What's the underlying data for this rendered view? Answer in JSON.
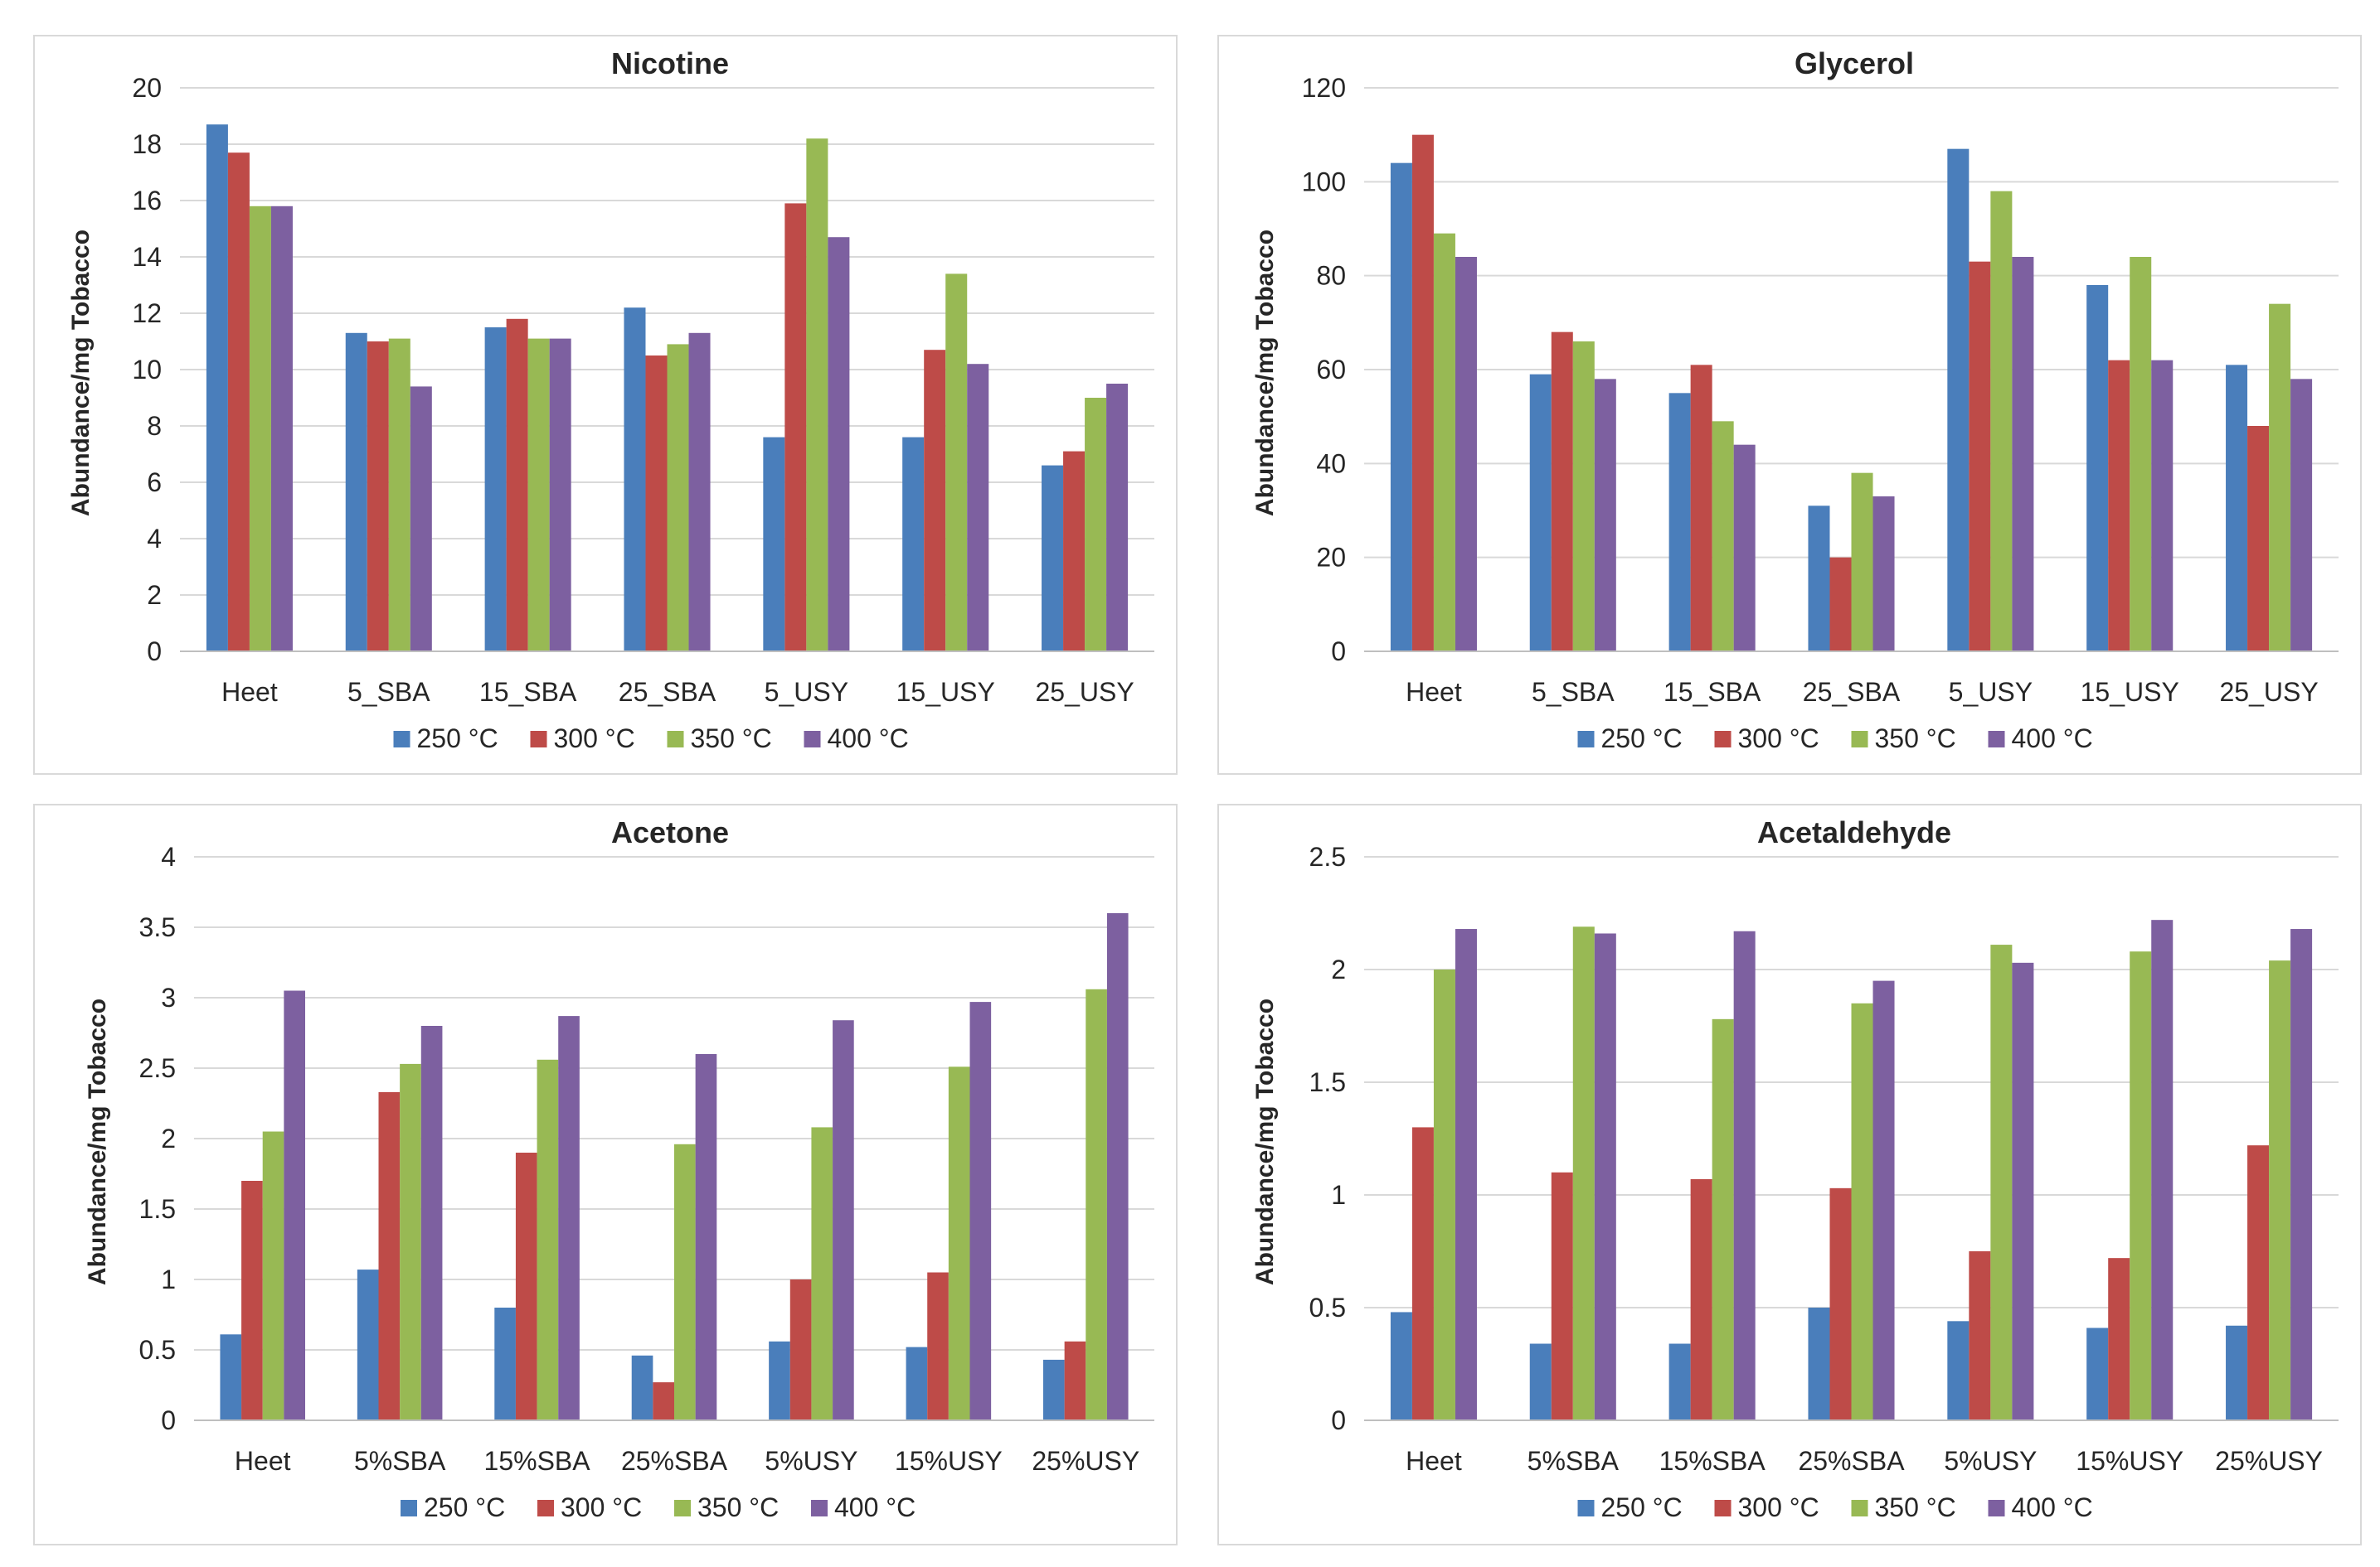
{
  "chart_data": [
    {
      "type": "bar",
      "title": "Nicotine",
      "xlabel": "",
      "ylabel": "Abundance/mg Tobacco",
      "ylim": [
        0,
        20
      ],
      "yticks": [
        0,
        2,
        4,
        6,
        8,
        10,
        12,
        14,
        16,
        18,
        20
      ],
      "grid": true,
      "legend": "bottom",
      "categories": [
        "Heet",
        "5_SBA",
        "15_SBA",
        "25_SBA",
        "5_USY",
        "15_USY",
        "25_USY"
      ],
      "series": [
        {
          "name": "250 °C",
          "color": "#4a7ebb",
          "values": [
            18.7,
            11.3,
            11.5,
            12.2,
            7.6,
            7.6,
            6.6
          ]
        },
        {
          "name": "300 °C",
          "color": "#be4b48",
          "values": [
            17.7,
            11.0,
            11.8,
            10.5,
            15.9,
            10.7,
            7.1
          ]
        },
        {
          "name": "350 °C",
          "color": "#98b954",
          "values": [
            15.8,
            11.1,
            11.1,
            10.9,
            18.2,
            13.4,
            9.0
          ]
        },
        {
          "name": "400 °C",
          "color": "#7d60a0",
          "values": [
            15.8,
            9.4,
            11.1,
            11.3,
            14.7,
            10.2,
            9.5
          ]
        }
      ]
    },
    {
      "type": "bar",
      "title": "Glycerol",
      "xlabel": "",
      "ylabel": "Abundance/mg Tobacco",
      "ylim": [
        0,
        120
      ],
      "yticks": [
        0,
        20,
        40,
        60,
        80,
        100,
        120
      ],
      "grid": true,
      "legend": "bottom",
      "categories": [
        "Heet",
        "5_SBA",
        "15_SBA",
        "25_SBA",
        "5_USY",
        "15_USY",
        "25_USY"
      ],
      "series": [
        {
          "name": "250 °C",
          "color": "#4a7ebb",
          "values": [
            104,
            59,
            55,
            31,
            107,
            78,
            61
          ]
        },
        {
          "name": "300 °C",
          "color": "#be4b48",
          "values": [
            110,
            68,
            61,
            20,
            83,
            62,
            48
          ]
        },
        {
          "name": "350 °C",
          "color": "#98b954",
          "values": [
            89,
            66,
            49,
            38,
            98,
            84,
            74
          ]
        },
        {
          "name": "400 °C",
          "color": "#7d60a0",
          "values": [
            84,
            58,
            44,
            33,
            84,
            62,
            58
          ]
        }
      ]
    },
    {
      "type": "bar",
      "title": "Acetone",
      "xlabel": "",
      "ylabel": "Abundance/mg Tobacco",
      "ylim": [
        0,
        4
      ],
      "yticks": [
        "0",
        "0.5",
        "1",
        "1.5",
        "2",
        "2.5",
        "3",
        "3.5",
        "4"
      ],
      "grid": true,
      "legend": "bottom",
      "categories": [
        "Heet",
        "5%SBA",
        "15%SBA",
        "25%SBA",
        "5%USY",
        "15%USY",
        "25%USY"
      ],
      "series": [
        {
          "name": "250 °C",
          "color": "#4a7ebb",
          "values": [
            0.61,
            1.07,
            0.8,
            0.46,
            0.56,
            0.52,
            0.43
          ]
        },
        {
          "name": "300 °C",
          "color": "#be4b48",
          "values": [
            1.7,
            2.33,
            1.9,
            0.27,
            1.0,
            1.05,
            0.56
          ]
        },
        {
          "name": "350 °C",
          "color": "#98b954",
          "values": [
            2.05,
            2.53,
            2.56,
            1.96,
            2.08,
            2.51,
            3.06
          ]
        },
        {
          "name": "400 °C",
          "color": "#7d60a0",
          "values": [
            3.05,
            2.8,
            2.87,
            2.6,
            2.84,
            2.97,
            3.6
          ]
        }
      ]
    },
    {
      "type": "bar",
      "title": "Acetaldehyde",
      "xlabel": "",
      "ylabel": "Abundance/mg Tobacco",
      "ylim": [
        0,
        2.5
      ],
      "yticks": [
        "0",
        "0.5",
        "1",
        "1.5",
        "2",
        "2.5"
      ],
      "grid": true,
      "legend": "bottom",
      "categories": [
        "Heet",
        "5%SBA",
        "15%SBA",
        "25%SBA",
        "5%USY",
        "15%USY",
        "25%USY"
      ],
      "series": [
        {
          "name": "250 °C",
          "color": "#4a7ebb",
          "values": [
            0.48,
            0.34,
            0.34,
            0.5,
            0.44,
            0.41,
            0.42
          ]
        },
        {
          "name": "300 °C",
          "color": "#be4b48",
          "values": [
            1.3,
            1.1,
            1.07,
            1.03,
            0.75,
            0.72,
            1.22
          ]
        },
        {
          "name": "350 °C",
          "color": "#98b954",
          "values": [
            2.0,
            2.19,
            1.78,
            1.85,
            2.11,
            2.08,
            2.04
          ]
        },
        {
          "name": "400 °C",
          "color": "#7d60a0",
          "values": [
            2.18,
            2.16,
            2.17,
            1.95,
            2.03,
            2.22,
            2.18
          ]
        }
      ]
    }
  ]
}
